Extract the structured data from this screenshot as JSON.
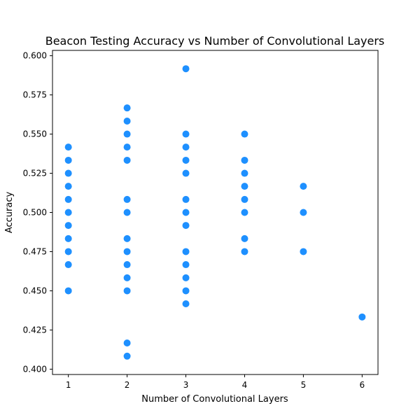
{
  "chart_data": {
    "type": "scatter",
    "title": "Beacon Testing Accuracy vs Number of Convolutional Layers",
    "xlabel": "Number of Convolutional Layers",
    "ylabel": "Accuracy",
    "xlim": [
      0.73,
      6.27
    ],
    "ylim": [
      0.3966,
      0.6034
    ],
    "x_ticks": [
      1,
      2,
      3,
      4,
      5,
      6
    ],
    "x_tick_labels": [
      "1",
      "2",
      "3",
      "4",
      "5",
      "6"
    ],
    "y_ticks": [
      0.4,
      0.425,
      0.45,
      0.475,
      0.5,
      0.525,
      0.55,
      0.575,
      0.6
    ],
    "y_tick_labels": [
      "0.400",
      "0.425",
      "0.450",
      "0.475",
      "0.500",
      "0.525",
      "0.550",
      "0.575",
      "0.600"
    ],
    "grid": false,
    "marker_color": "#1e90ff",
    "points": [
      {
        "x": 1,
        "y": 0.5417
      },
      {
        "x": 1,
        "y": 0.5333
      },
      {
        "x": 1,
        "y": 0.525
      },
      {
        "x": 1,
        "y": 0.5167
      },
      {
        "x": 1,
        "y": 0.5083
      },
      {
        "x": 1,
        "y": 0.5
      },
      {
        "x": 1,
        "y": 0.4917
      },
      {
        "x": 1,
        "y": 0.4833
      },
      {
        "x": 1,
        "y": 0.475
      },
      {
        "x": 1,
        "y": 0.4667
      },
      {
        "x": 1,
        "y": 0.45
      },
      {
        "x": 2,
        "y": 0.5667
      },
      {
        "x": 2,
        "y": 0.5583
      },
      {
        "x": 2,
        "y": 0.55
      },
      {
        "x": 2,
        "y": 0.5417
      },
      {
        "x": 2,
        "y": 0.5333
      },
      {
        "x": 2,
        "y": 0.5083
      },
      {
        "x": 2,
        "y": 0.5
      },
      {
        "x": 2,
        "y": 0.4833
      },
      {
        "x": 2,
        "y": 0.475
      },
      {
        "x": 2,
        "y": 0.4667
      },
      {
        "x": 2,
        "y": 0.4583
      },
      {
        "x": 2,
        "y": 0.45
      },
      {
        "x": 2,
        "y": 0.4167
      },
      {
        "x": 2,
        "y": 0.4083
      },
      {
        "x": 3,
        "y": 0.5917
      },
      {
        "x": 3,
        "y": 0.55
      },
      {
        "x": 3,
        "y": 0.5417
      },
      {
        "x": 3,
        "y": 0.5333
      },
      {
        "x": 3,
        "y": 0.525
      },
      {
        "x": 3,
        "y": 0.5083
      },
      {
        "x": 3,
        "y": 0.5
      },
      {
        "x": 3,
        "y": 0.4917
      },
      {
        "x": 3,
        "y": 0.475
      },
      {
        "x": 3,
        "y": 0.4667
      },
      {
        "x": 3,
        "y": 0.4583
      },
      {
        "x": 3,
        "y": 0.45
      },
      {
        "x": 3,
        "y": 0.4417
      },
      {
        "x": 4,
        "y": 0.55
      },
      {
        "x": 4,
        "y": 0.5333
      },
      {
        "x": 4,
        "y": 0.525
      },
      {
        "x": 4,
        "y": 0.5167
      },
      {
        "x": 4,
        "y": 0.5083
      },
      {
        "x": 4,
        "y": 0.5
      },
      {
        "x": 4,
        "y": 0.4833
      },
      {
        "x": 4,
        "y": 0.475
      },
      {
        "x": 5,
        "y": 0.5167
      },
      {
        "x": 5,
        "y": 0.5
      },
      {
        "x": 5,
        "y": 0.475
      },
      {
        "x": 6,
        "y": 0.4333
      }
    ]
  }
}
